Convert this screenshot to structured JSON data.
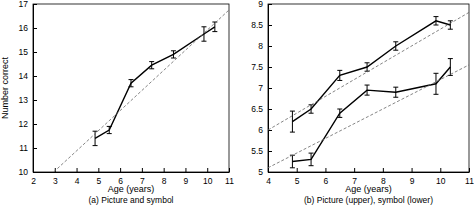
{
  "chart_data": [
    {
      "type": "line",
      "title": "(a) Picture and symbol",
      "x_label": "Age (years)",
      "y_label": "Number correct",
      "xlim": [
        2,
        11
      ],
      "ylim": [
        10,
        17
      ],
      "xticks": [
        2,
        3,
        4,
        5,
        6,
        7,
        8,
        9,
        10,
        11
      ],
      "yticks": [
        10,
        11,
        12,
        13,
        14,
        15,
        16,
        17
      ],
      "series": [
        {
          "color": "#000000",
          "line_style": "solid",
          "x": [
            4.85,
            5.5,
            6.5,
            7.45,
            8.45,
            9.85,
            10.35
          ],
          "values": [
            11.4,
            11.75,
            13.7,
            14.45,
            14.9,
            15.75,
            16.05
          ],
          "errors": [
            0.3,
            0.15,
            0.15,
            0.15,
            0.15,
            0.3,
            0.2
          ]
        },
        {
          "color": "#666666",
          "line_style": "dashed",
          "x": [
            2.95,
            11
          ],
          "values": [
            10,
            16.75
          ]
        }
      ]
    },
    {
      "type": "line",
      "title": "(b) Picture (upper), symbol (lower)",
      "x_label": "Age (years)",
      "xlim": [
        4,
        11
      ],
      "ylim": [
        5,
        9
      ],
      "xticks": [
        4,
        5,
        6,
        7,
        8,
        9,
        10,
        11
      ],
      "yticks": [
        5,
        5.5,
        6,
        6.5,
        7,
        7.5,
        8,
        8.5,
        9
      ],
      "series": [
        {
          "color": "#000000",
          "line_style": "solid",
          "x": [
            4.85,
            5.5,
            6.5,
            7.45,
            8.45,
            9.85,
            10.35
          ],
          "values": [
            6.2,
            6.5,
            7.3,
            7.5,
            8.0,
            8.6,
            8.5
          ],
          "errors": [
            0.25,
            0.1,
            0.12,
            0.1,
            0.1,
            0.1,
            0.1
          ]
        },
        {
          "color": "#000000",
          "line_style": "solid",
          "x": [
            4.85,
            5.5,
            6.5,
            7.45,
            8.45,
            9.85,
            10.35
          ],
          "values": [
            5.25,
            5.3,
            6.4,
            6.95,
            6.9,
            7.1,
            7.5
          ],
          "errors": [
            0.15,
            0.15,
            0.1,
            0.12,
            0.12,
            0.25,
            0.2
          ]
        },
        {
          "color": "#666666",
          "line_style": "dashed",
          "x": [
            4,
            11
          ],
          "values": [
            6.0,
            8.8
          ]
        },
        {
          "color": "#666666",
          "line_style": "dashed",
          "x": [
            4,
            11
          ],
          "values": [
            5.1,
            7.55
          ]
        }
      ]
    }
  ]
}
